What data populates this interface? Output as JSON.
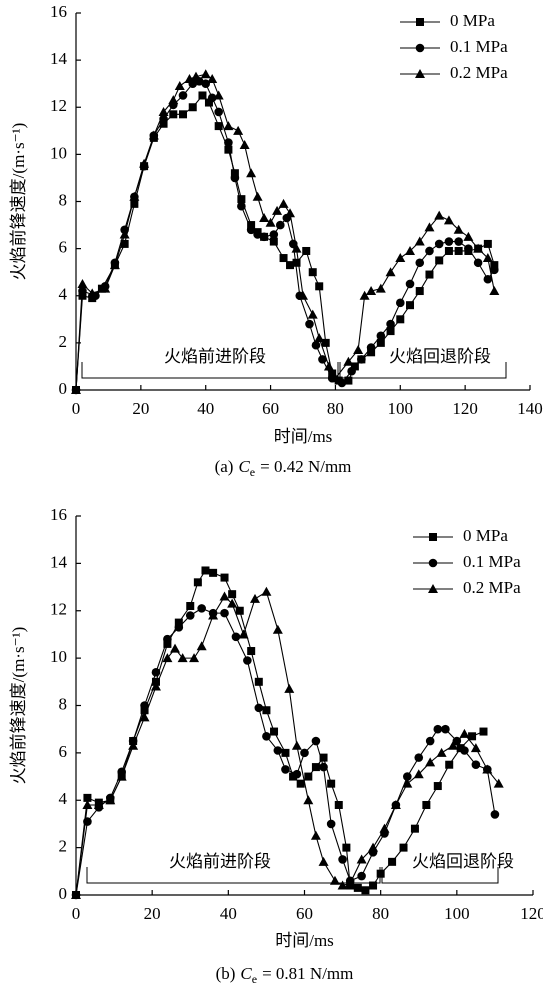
{
  "chart_data": [
    {
      "type": "line",
      "xlabel": "时间/ms",
      "ylabel": "火焰前锋速度/(m·s⁻¹)",
      "caption": {
        "label": "(a)",
        "symbol": "C",
        "subscript": "e",
        "text": "= 0.42 N/mm"
      },
      "annotations": [
        "火焰前进阶段",
        "火焰回退阶段"
      ],
      "xlim": [
        0,
        140
      ],
      "ylim": [
        0,
        16
      ],
      "xticks": [
        0,
        20,
        40,
        60,
        80,
        100,
        120,
        140
      ],
      "yticks": [
        0,
        2,
        4,
        6,
        8,
        10,
        12,
        14,
        16
      ],
      "legend": "upper right",
      "series": [
        {
          "name": "0 MPa",
          "color": "#000000",
          "marker": "square",
          "x": [
            0,
            2,
            5,
            8,
            12,
            15,
            18,
            21,
            24,
            27,
            30,
            33,
            36,
            39,
            41,
            44,
            47,
            49,
            51,
            54,
            56,
            58,
            61,
            64,
            66,
            68,
            71,
            73,
            75,
            77,
            79,
            81,
            84,
            86,
            88,
            91,
            94,
            97,
            100,
            103,
            106,
            109,
            112,
            115,
            118,
            121,
            124,
            127,
            129
          ],
          "values": [
            0,
            4.0,
            3.9,
            4.3,
            5.3,
            6.2,
            7.9,
            9.5,
            10.7,
            11.3,
            11.7,
            11.7,
            12.0,
            12.5,
            12.2,
            11.2,
            10.2,
            9.2,
            8.1,
            7.0,
            6.7,
            6.5,
            6.3,
            5.6,
            5.3,
            5.4,
            5.9,
            5.0,
            4.4,
            2.0,
            0.7,
            0.4,
            0.4,
            1.0,
            1.3,
            1.6,
            2.0,
            2.5,
            3.0,
            3.6,
            4.2,
            4.9,
            5.5,
            5.9,
            5.9,
            5.9,
            6.0,
            6.2,
            5.3
          ]
        },
        {
          "name": "0.1 MPa",
          "color": "#000000",
          "marker": "circle",
          "x": [
            0,
            2,
            6,
            9,
            12,
            15,
            18,
            21,
            24,
            27,
            30,
            33,
            36,
            38,
            40,
            42,
            44,
            47,
            49,
            51,
            54,
            56,
            58,
            61,
            63,
            65,
            67,
            69,
            72,
            74,
            76,
            79,
            82,
            85,
            88,
            91,
            94,
            97,
            100,
            103,
            106,
            109,
            112,
            115,
            118,
            121,
            124,
            127,
            129
          ],
          "values": [
            0,
            4.2,
            4.0,
            4.4,
            5.4,
            6.8,
            8.2,
            9.5,
            10.8,
            11.5,
            12.1,
            12.5,
            13.0,
            13.1,
            13.0,
            12.4,
            11.8,
            10.5,
            9.0,
            7.8,
            6.8,
            6.6,
            6.5,
            6.6,
            7.0,
            7.3,
            6.2,
            4.0,
            2.8,
            1.9,
            1.3,
            0.5,
            0.3,
            0.8,
            1.3,
            1.8,
            2.3,
            2.8,
            3.7,
            4.5,
            5.4,
            5.9,
            6.2,
            6.3,
            6.3,
            6.0,
            5.4,
            4.7,
            5.1
          ]
        },
        {
          "name": "0.2 MPa",
          "color": "#000000",
          "marker": "triangle",
          "x": [
            0,
            2,
            5,
            9,
            12,
            15,
            18,
            21,
            24,
            27,
            30,
            32,
            35,
            37,
            40,
            42,
            44,
            47,
            50,
            52,
            54,
            56,
            58,
            60,
            62,
            64,
            66,
            68,
            70,
            73,
            75,
            78,
            80,
            84,
            87,
            89,
            91,
            94,
            97,
            100,
            103,
            106,
            109,
            112,
            115,
            118,
            121,
            124,
            127,
            129
          ],
          "values": [
            0,
            4.5,
            4.1,
            4.3,
            5.3,
            6.6,
            8.2,
            9.6,
            10.8,
            11.8,
            12.3,
            12.9,
            13.2,
            13.3,
            13.4,
            13.2,
            12.5,
            11.2,
            11.0,
            10.4,
            9.2,
            8.2,
            7.3,
            7.1,
            7.6,
            7.9,
            7.5,
            6.0,
            4.0,
            3.2,
            2.2,
            1.0,
            0.5,
            1.2,
            1.7,
            4.0,
            4.2,
            4.3,
            5.0,
            5.6,
            5.9,
            6.3,
            6.9,
            7.4,
            7.2,
            6.8,
            6.5,
            6.0,
            5.6,
            4.2
          ]
        }
      ]
    },
    {
      "type": "line",
      "xlabel": "时间/ms",
      "ylabel": "火焰前锋速度/(m·s⁻¹)",
      "caption": {
        "label": "(b)",
        "symbol": "C",
        "subscript": "e",
        "text": "= 0.81 N/mm"
      },
      "annotations": [
        "火焰前进阶段",
        "火焰回退阶段"
      ],
      "xlim": [
        0,
        120
      ],
      "ylim": [
        0,
        16
      ],
      "xticks": [
        0,
        20,
        40,
        60,
        80,
        100,
        120
      ],
      "yticks": [
        0,
        2,
        4,
        6,
        8,
        10,
        12,
        14,
        16
      ],
      "legend": "upper right",
      "series": [
        {
          "name": "0 MPa",
          "color": "#000000",
          "marker": "square",
          "x": [
            0,
            3,
            6,
            9,
            12,
            15,
            18,
            21,
            24,
            27,
            30,
            32,
            34,
            36,
            39,
            41,
            43,
            46,
            48,
            50,
            52,
            55,
            57,
            59,
            61,
            63,
            65,
            67,
            69,
            71,
            72,
            74,
            76,
            78,
            80,
            83,
            86,
            89,
            92,
            95,
            98,
            101,
            104,
            107
          ],
          "values": [
            0,
            4.1,
            3.9,
            4.0,
            5.0,
            6.5,
            7.8,
            9.0,
            10.6,
            11.5,
            12.2,
            13.2,
            13.7,
            13.6,
            13.4,
            12.7,
            12.0,
            10.3,
            9.0,
            7.8,
            6.9,
            6.0,
            5.0,
            4.7,
            5.0,
            5.4,
            5.8,
            4.7,
            3.8,
            2.0,
            0.4,
            0.3,
            0.2,
            0.4,
            0.9,
            1.4,
            2.0,
            2.8,
            3.8,
            4.6,
            5.5,
            6.2,
            6.7,
            6.9
          ]
        },
        {
          "name": "0.1 MPa",
          "color": "#000000",
          "marker": "circle",
          "x": [
            0,
            3,
            6,
            9,
            12,
            15,
            18,
            21,
            24,
            27,
            30,
            33,
            36,
            39,
            42,
            45,
            48,
            50,
            53,
            55,
            58,
            60,
            63,
            65,
            67,
            70,
            72,
            75,
            78,
            81,
            84,
            87,
            90,
            93,
            95,
            97,
            100,
            102,
            105,
            108,
            110
          ],
          "values": [
            0,
            3.1,
            3.7,
            4.1,
            5.2,
            6.5,
            8.0,
            9.4,
            10.8,
            11.3,
            11.8,
            12.1,
            11.9,
            11.9,
            10.9,
            9.9,
            7.9,
            6.7,
            6.1,
            5.3,
            5.1,
            6.0,
            6.5,
            5.4,
            3.0,
            1.5,
            0.6,
            0.8,
            1.8,
            2.6,
            3.8,
            5.0,
            5.8,
            6.5,
            7.0,
            7.0,
            6.5,
            6.1,
            5.5,
            5.3,
            3.4
          ]
        },
        {
          "name": "0.2 MPa",
          "color": "#000000",
          "marker": "triangle",
          "x": [
            0,
            3,
            6,
            9,
            12,
            15,
            18,
            21,
            24,
            26,
            28,
            31,
            33,
            36,
            39,
            41,
            44,
            47,
            50,
            53,
            56,
            58,
            61,
            63,
            65,
            68,
            70,
            72,
            75,
            78,
            81,
            84,
            87,
            90,
            93,
            96,
            99,
            102,
            105,
            108,
            111
          ],
          "values": [
            0,
            3.8,
            3.8,
            4.0,
            5.0,
            6.3,
            7.5,
            8.8,
            10.0,
            10.4,
            10.0,
            10.0,
            10.5,
            11.8,
            12.6,
            12.3,
            11.0,
            12.5,
            12.8,
            11.2,
            8.7,
            6.3,
            4.0,
            2.5,
            1.4,
            0.6,
            0.4,
            0.5,
            1.5,
            2.0,
            2.8,
            3.8,
            4.7,
            5.1,
            5.6,
            6.0,
            6.3,
            6.8,
            6.2,
            5.3,
            4.7
          ]
        }
      ]
    }
  ]
}
